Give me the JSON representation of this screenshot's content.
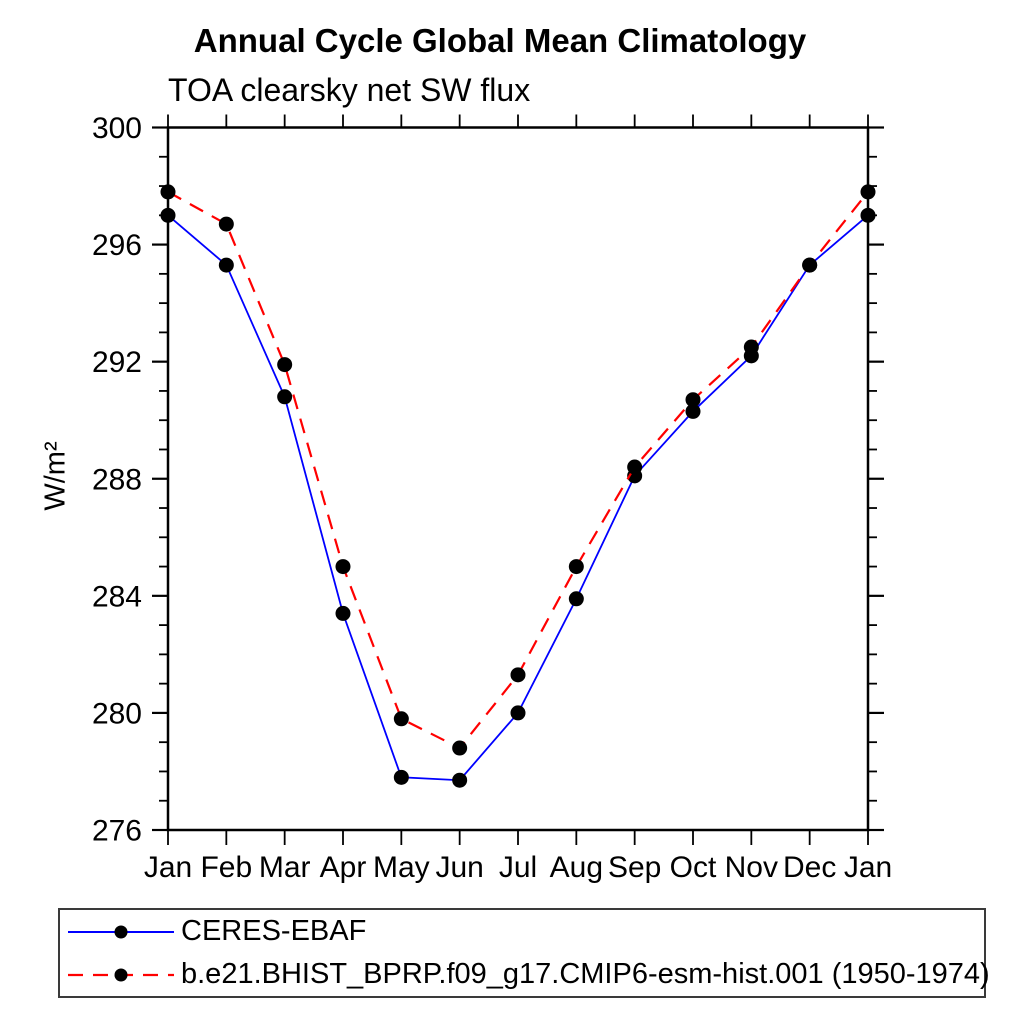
{
  "title": "Annual Cycle Global Mean Climatology",
  "subtitle": "TOA clearsky net SW flux",
  "y_axis_title": "W/m²",
  "colors": {
    "obs_line": "#0000ff",
    "model_line": "#ff0000",
    "marker": "#000000",
    "axis": "#000000"
  },
  "legend": {
    "entries": [
      {
        "label": "CERES-EBAF"
      },
      {
        "label": "b.e21.BHIST_BPRP.f09_g17.CMIP6-esm-hist.001 (1950-1974)"
      }
    ]
  },
  "chart_data": {
    "type": "line",
    "x": [
      "Jan",
      "Feb",
      "Mar",
      "Apr",
      "May",
      "Jun",
      "Jul",
      "Aug",
      "Sep",
      "Oct",
      "Nov",
      "Dec",
      "Jan"
    ],
    "series": [
      {
        "name": "CERES-EBAF",
        "color": "#0000ff",
        "line_style": "solid",
        "marker": "circle",
        "marker_color": "#000000",
        "values": [
          297.0,
          295.3,
          290.8,
          283.4,
          277.8,
          277.7,
          280.0,
          283.9,
          288.1,
          290.3,
          292.2,
          295.3,
          297.0
        ]
      },
      {
        "name": "b.e21.BHIST_BPRP.f09_g17.CMIP6-esm-hist.001 (1950-1974)",
        "color": "#ff0000",
        "line_style": "dashed",
        "marker": "circle",
        "marker_color": "#000000",
        "values": [
          297.8,
          296.7,
          291.9,
          285.0,
          279.8,
          278.8,
          281.3,
          285.0,
          288.4,
          290.7,
          292.5,
          295.3,
          297.8
        ]
      }
    ],
    "ylabel": "W/m²",
    "ylim": [
      276,
      300
    ],
    "y_major_ticks": [
      276,
      280,
      284,
      288,
      292,
      296,
      300
    ],
    "y_minor_step": 1,
    "grid": false,
    "legend_position": "bottom"
  }
}
